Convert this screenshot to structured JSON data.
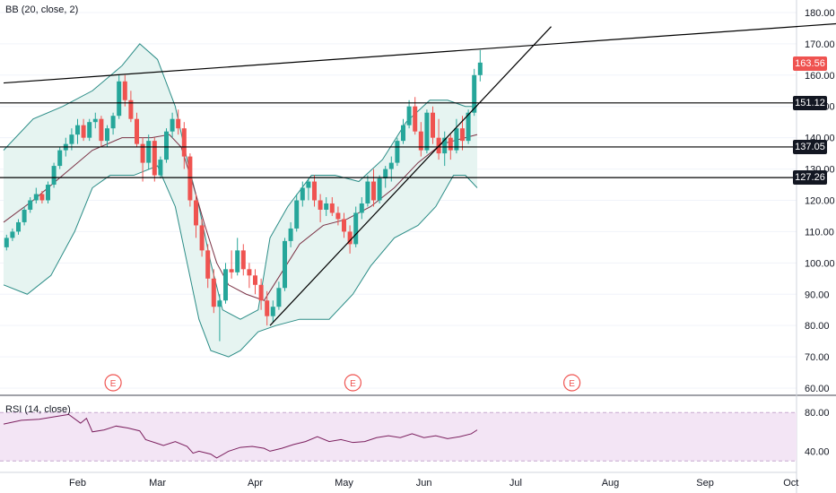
{
  "study_bb": "BB (20, close, 2)",
  "study_rsi": "RSI (14, close)",
  "colors": {
    "up": "#26a69a",
    "down": "#ef5350",
    "bb_fill": "#e6f4f1",
    "bb_band": "#2a8c86",
    "bb_basis": "#7b3245",
    "rsi_line": "#7b1f5e",
    "rsi_fill": "#f3e5f5",
    "grid": "#f0f3fa",
    "text": "#131722"
  },
  "price_tags": [
    {
      "label": "163.56",
      "bg": "#ef5350",
      "fg": "#ffffff",
      "value": 163.56
    },
    {
      "label": "151.12",
      "bg": "#131722",
      "fg": "#ffffff",
      "value": 151.12
    },
    {
      "label": "137.05",
      "bg": "#131722",
      "fg": "#ffffff",
      "value": 137.05
    },
    {
      "label": "127.26",
      "bg": "#131722",
      "fg": "#ffffff",
      "value": 127.26
    }
  ],
  "earnings_label": "E",
  "chart_data": {
    "type": "candlestick",
    "x_tick_labels": [
      "Feb",
      "Mar",
      "Apr",
      "May",
      "Jun",
      "Jul",
      "Aug",
      "Sep",
      "Oct"
    ],
    "price_axis": {
      "ticks": [
        "180.00",
        "170.00",
        "160.00",
        "150.00",
        "140.00",
        "130.00",
        "120.00",
        "110.00",
        "100.00",
        "90.00",
        "80.00",
        "70.00",
        "60.00"
      ],
      "ylim": [
        58,
        184
      ]
    },
    "rsi_axis": {
      "ticks": [
        "80.00",
        "40.00"
      ],
      "ylim": [
        20,
        95
      ],
      "band": [
        30,
        80
      ]
    },
    "horizontal_levels": [
      151.12,
      137.05,
      127.26
    ],
    "trendlines": [
      {
        "name": "upper-resistance",
        "from": [
          0,
          157.5
        ],
        "to": [
          290,
          177
        ]
      },
      {
        "name": "rising-support",
        "from": [
          90,
          80
        ],
        "to": [
          185,
          175.5
        ]
      }
    ],
    "earnings_markers": [
      37,
      118,
      192
    ],
    "x_range": [
      0,
      260
    ],
    "close_ticks": "trading-day index",
    "candles": [
      [
        1,
        105,
        109,
        104,
        108
      ],
      [
        3,
        108,
        111,
        107,
        110
      ],
      [
        5,
        110,
        114,
        109,
        113
      ],
      [
        7,
        113,
        118,
        112,
        117
      ],
      [
        9,
        117,
        121,
        116,
        120
      ],
      [
        11,
        120,
        124,
        119,
        122
      ],
      [
        13,
        122,
        123,
        119,
        120
      ],
      [
        15,
        120,
        126,
        119,
        125
      ],
      [
        17,
        125,
        132,
        124,
        131
      ],
      [
        19,
        131,
        137,
        130,
        136
      ],
      [
        21,
        136,
        140,
        134,
        138
      ],
      [
        23,
        138,
        143,
        136,
        141
      ],
      [
        25,
        141,
        146,
        138,
        144
      ],
      [
        27,
        144,
        146,
        139,
        140
      ],
      [
        29,
        140,
        146,
        139,
        145
      ],
      [
        31,
        145,
        148,
        143,
        146
      ],
      [
        33,
        146,
        147,
        137,
        139
      ],
      [
        35,
        139,
        144,
        137,
        143
      ],
      [
        37,
        143,
        148,
        141,
        147
      ],
      [
        39,
        147,
        160,
        146,
        158
      ],
      [
        41,
        158,
        160,
        150,
        152
      ],
      [
        43,
        152,
        155,
        145,
        146
      ],
      [
        45,
        146,
        148,
        137,
        138
      ],
      [
        47,
        138,
        140,
        126,
        132
      ],
      [
        49,
        132,
        141,
        130,
        139
      ],
      [
        51,
        139,
        140,
        126,
        128
      ],
      [
        53,
        128,
        134,
        127,
        133
      ],
      [
        55,
        133,
        143,
        132,
        142
      ],
      [
        57,
        142,
        148,
        140,
        146
      ],
      [
        59,
        146,
        149,
        141,
        143
      ],
      [
        61,
        143,
        145,
        130,
        134
      ],
      [
        63,
        134,
        135,
        118,
        120
      ],
      [
        65,
        120,
        122,
        108,
        112
      ],
      [
        67,
        112,
        114,
        102,
        104
      ],
      [
        69,
        104,
        106,
        92,
        95
      ],
      [
        71,
        95,
        98,
        84,
        86
      ],
      [
        73,
        86,
        90,
        75,
        88
      ],
      [
        75,
        88,
        100,
        87,
        98
      ],
      [
        77,
        98,
        104,
        95,
        97
      ],
      [
        79,
        97,
        108,
        96,
        104
      ],
      [
        81,
        104,
        106,
        96,
        98
      ],
      [
        83,
        98,
        100,
        92,
        96
      ],
      [
        85,
        96,
        98,
        90,
        93
      ],
      [
        87,
        93,
        95,
        85,
        88
      ],
      [
        89,
        88,
        91,
        80,
        83
      ],
      [
        91,
        83,
        88,
        81,
        86
      ],
      [
        93,
        86,
        94,
        85,
        92
      ],
      [
        95,
        92,
        108,
        91,
        107
      ],
      [
        97,
        107,
        113,
        105,
        111
      ],
      [
        99,
        111,
        122,
        110,
        120
      ],
      [
        101,
        120,
        126,
        118,
        124
      ],
      [
        103,
        124,
        127,
        120,
        126
      ],
      [
        105,
        126,
        128,
        118,
        120
      ],
      [
        107,
        120,
        122,
        113,
        117
      ],
      [
        109,
        117,
        121,
        115,
        119
      ],
      [
        111,
        119,
        121,
        115,
        116
      ],
      [
        113,
        116,
        118,
        112,
        114
      ],
      [
        115,
        114,
        116,
        108,
        110
      ],
      [
        117,
        110,
        112,
        103,
        106
      ],
      [
        119,
        106,
        118,
        105,
        116
      ],
      [
        121,
        116,
        121,
        114,
        119
      ],
      [
        123,
        119,
        128,
        118,
        126
      ],
      [
        125,
        126,
        130,
        118,
        120
      ],
      [
        127,
        120,
        128,
        119,
        127
      ],
      [
        129,
        127,
        131,
        124,
        130
      ],
      [
        131,
        130,
        134,
        126,
        132
      ],
      [
        133,
        132,
        140,
        131,
        139
      ],
      [
        135,
        139,
        146,
        138,
        144
      ],
      [
        137,
        144,
        152,
        143,
        150
      ],
      [
        139,
        150,
        153,
        141,
        142
      ],
      [
        141,
        142,
        145,
        134,
        136
      ],
      [
        143,
        136,
        149,
        135,
        148
      ],
      [
        145,
        148,
        150,
        138,
        140
      ],
      [
        147,
        140,
        146,
        133,
        135
      ],
      [
        149,
        135,
        142,
        131,
        140
      ],
      [
        151,
        140,
        141,
        133,
        136
      ],
      [
        153,
        136,
        146,
        135,
        143
      ],
      [
        155,
        143,
        147,
        136,
        139
      ],
      [
        157,
        139,
        149,
        138,
        148
      ],
      [
        159,
        148,
        162,
        147,
        160
      ],
      [
        161,
        160,
        168,
        158,
        164
      ]
    ],
    "bb_upper": [
      [
        0,
        136
      ],
      [
        10,
        146
      ],
      [
        20,
        150
      ],
      [
        30,
        155
      ],
      [
        40,
        163
      ],
      [
        46,
        170
      ],
      [
        52,
        165
      ],
      [
        58,
        150
      ],
      [
        62,
        133
      ],
      [
        66,
        118
      ],
      [
        70,
        100
      ],
      [
        74,
        85
      ],
      [
        80,
        82
      ],
      [
        86,
        85
      ],
      [
        90,
        108
      ],
      [
        96,
        118
      ],
      [
        104,
        128
      ],
      [
        112,
        128
      ],
      [
        120,
        126
      ],
      [
        128,
        133
      ],
      [
        136,
        145
      ],
      [
        144,
        152
      ],
      [
        150,
        152
      ],
      [
        156,
        150
      ],
      [
        160,
        150
      ]
    ],
    "bb_basis": [
      [
        0,
        113
      ],
      [
        10,
        120
      ],
      [
        20,
        128
      ],
      [
        30,
        136
      ],
      [
        40,
        140
      ],
      [
        50,
        140
      ],
      [
        56,
        141
      ],
      [
        60,
        137
      ],
      [
        64,
        125
      ],
      [
        68,
        112
      ],
      [
        72,
        100
      ],
      [
        76,
        93
      ],
      [
        82,
        90
      ],
      [
        88,
        88
      ],
      [
        94,
        97
      ],
      [
        100,
        106
      ],
      [
        108,
        112
      ],
      [
        116,
        114
      ],
      [
        124,
        118
      ],
      [
        132,
        124
      ],
      [
        140,
        132
      ],
      [
        148,
        138
      ],
      [
        156,
        140
      ],
      [
        160,
        141
      ]
    ],
    "bb_lower": [
      [
        0,
        93
      ],
      [
        8,
        90
      ],
      [
        16,
        96
      ],
      [
        24,
        110
      ],
      [
        30,
        124
      ],
      [
        36,
        128
      ],
      [
        44,
        128
      ],
      [
        52,
        131
      ],
      [
        58,
        118
      ],
      [
        62,
        100
      ],
      [
        66,
        82
      ],
      [
        70,
        72
      ],
      [
        76,
        70
      ],
      [
        80,
        72
      ],
      [
        86,
        78
      ],
      [
        92,
        80
      ],
      [
        100,
        82
      ],
      [
        110,
        82
      ],
      [
        118,
        90
      ],
      [
        124,
        99
      ],
      [
        132,
        108
      ],
      [
        140,
        112
      ],
      [
        146,
        118
      ],
      [
        152,
        128
      ],
      [
        156,
        128
      ],
      [
        160,
        124
      ]
    ],
    "rsi": [
      [
        0,
        68
      ],
      [
        6,
        72
      ],
      [
        12,
        73
      ],
      [
        18,
        76
      ],
      [
        22,
        78
      ],
      [
        26,
        69
      ],
      [
        28,
        74
      ],
      [
        30,
        60
      ],
      [
        34,
        62
      ],
      [
        38,
        66
      ],
      [
        42,
        64
      ],
      [
        46,
        61
      ],
      [
        48,
        52
      ],
      [
        52,
        48
      ],
      [
        54,
        46
      ],
      [
        58,
        50
      ],
      [
        62,
        45
      ],
      [
        64,
        38
      ],
      [
        66,
        40
      ],
      [
        70,
        37
      ],
      [
        72,
        33
      ],
      [
        76,
        40
      ],
      [
        80,
        44
      ],
      [
        84,
        45
      ],
      [
        88,
        43
      ],
      [
        90,
        40
      ],
      [
        94,
        43
      ],
      [
        98,
        47
      ],
      [
        102,
        50
      ],
      [
        106,
        55
      ],
      [
        110,
        50
      ],
      [
        114,
        52
      ],
      [
        118,
        49
      ],
      [
        122,
        50
      ],
      [
        126,
        54
      ],
      [
        130,
        56
      ],
      [
        134,
        54
      ],
      [
        138,
        58
      ],
      [
        142,
        54
      ],
      [
        146,
        56
      ],
      [
        150,
        53
      ],
      [
        154,
        55
      ],
      [
        158,
        58
      ],
      [
        160,
        62
      ]
    ]
  }
}
